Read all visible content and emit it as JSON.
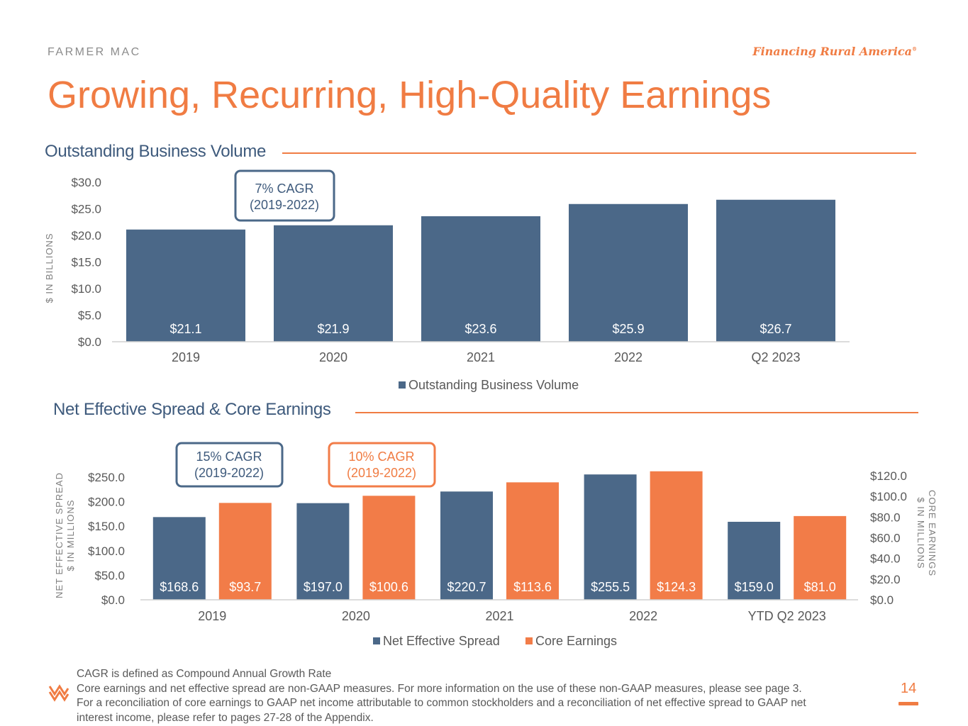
{
  "header": {
    "brand": "FARMER MAC",
    "tagline": "Financing Rural America",
    "tagline_mark": "®",
    "title": "Growing, Recurring, High-Quality Earnings"
  },
  "sections": {
    "volume_title": "Outstanding Business Volume",
    "spread_title": "Net Effective Spread & Core Earnings"
  },
  "colors": {
    "navy": "#4b6888",
    "orange": "#f27c48",
    "accent": "#f07c43",
    "title_blue": "#3e5a7c"
  },
  "chart_data": [
    {
      "type": "bar",
      "title": "Outstanding Business Volume",
      "categories": [
        "2019",
        "2020",
        "2021",
        "2022",
        "Q2 2023"
      ],
      "series": [
        {
          "name": "Outstanding Business Volume",
          "values": [
            21.1,
            21.9,
            23.6,
            25.9,
            26.7
          ],
          "labels": [
            "$21.1",
            "$21.9",
            "$23.6",
            "$25.9",
            "$26.7"
          ]
        }
      ],
      "ylabel": "$ IN BILLIONS",
      "ylim": [
        0,
        30
      ],
      "yticks": [
        "$0.0",
        "$5.0",
        "$10.0",
        "$15.0",
        "$20.0",
        "$25.0",
        "$30.0"
      ],
      "legend": "bottom-center",
      "callout": {
        "line1": "7% CAGR",
        "line2": "(2019-2022)"
      }
    },
    {
      "type": "bar",
      "title": "Net Effective Spread & Core Earnings",
      "categories": [
        "2019",
        "2020",
        "2021",
        "2022",
        "YTD Q2 2023"
      ],
      "series": [
        {
          "name": "Net Effective Spread",
          "axis": "left",
          "values": [
            168.6,
            197.0,
            220.7,
            255.5,
            159.0
          ],
          "labels": [
            "$168.6",
            "$197.0",
            "$220.7",
            "$255.5",
            "$159.0"
          ]
        },
        {
          "name": "Core Earnings",
          "axis": "right",
          "values": [
            93.7,
            100.6,
            113.6,
            124.3,
            81.0
          ],
          "labels": [
            "$93.7",
            "$100.6",
            "$113.6",
            "$124.3",
            "$81.0"
          ]
        }
      ],
      "ylabel_left": [
        "NET EFFECTIVE SPREAD",
        "$ IN MILLIONS"
      ],
      "ylabel_right": [
        "CORE EARNINGS",
        "$ IN MILLIONS"
      ],
      "ylim_left": [
        0,
        250
      ],
      "ylim_right": [
        0,
        120
      ],
      "yticks_left": [
        "$0.0",
        "$50.0",
        "$100.0",
        "$150.0",
        "$200.0",
        "$250.0"
      ],
      "yticks_right": [
        "$0.0",
        "$20.0",
        "$40.0",
        "$60.0",
        "$80.0",
        "$100.0",
        "$120.0"
      ],
      "legend": "bottom-center",
      "callouts": [
        {
          "line1": "15% CAGR",
          "line2": "(2019-2022)"
        },
        {
          "line1": "10% CAGR",
          "line2": "(2019-2022)"
        }
      ]
    }
  ],
  "footnotes": [
    "CAGR is defined as Compound Annual Growth Rate",
    "Core earnings and net effective spread are non-GAAP measures.  For more information on the use of these non-GAAP measures, please see page 3.",
    "For a reconciliation of core earnings to GAAP net income attributable to common stockholders and a reconciliation of net effective spread to GAAP net",
    "interest income, please refer to pages 27-28 of the Appendix."
  ],
  "page_number": "14"
}
